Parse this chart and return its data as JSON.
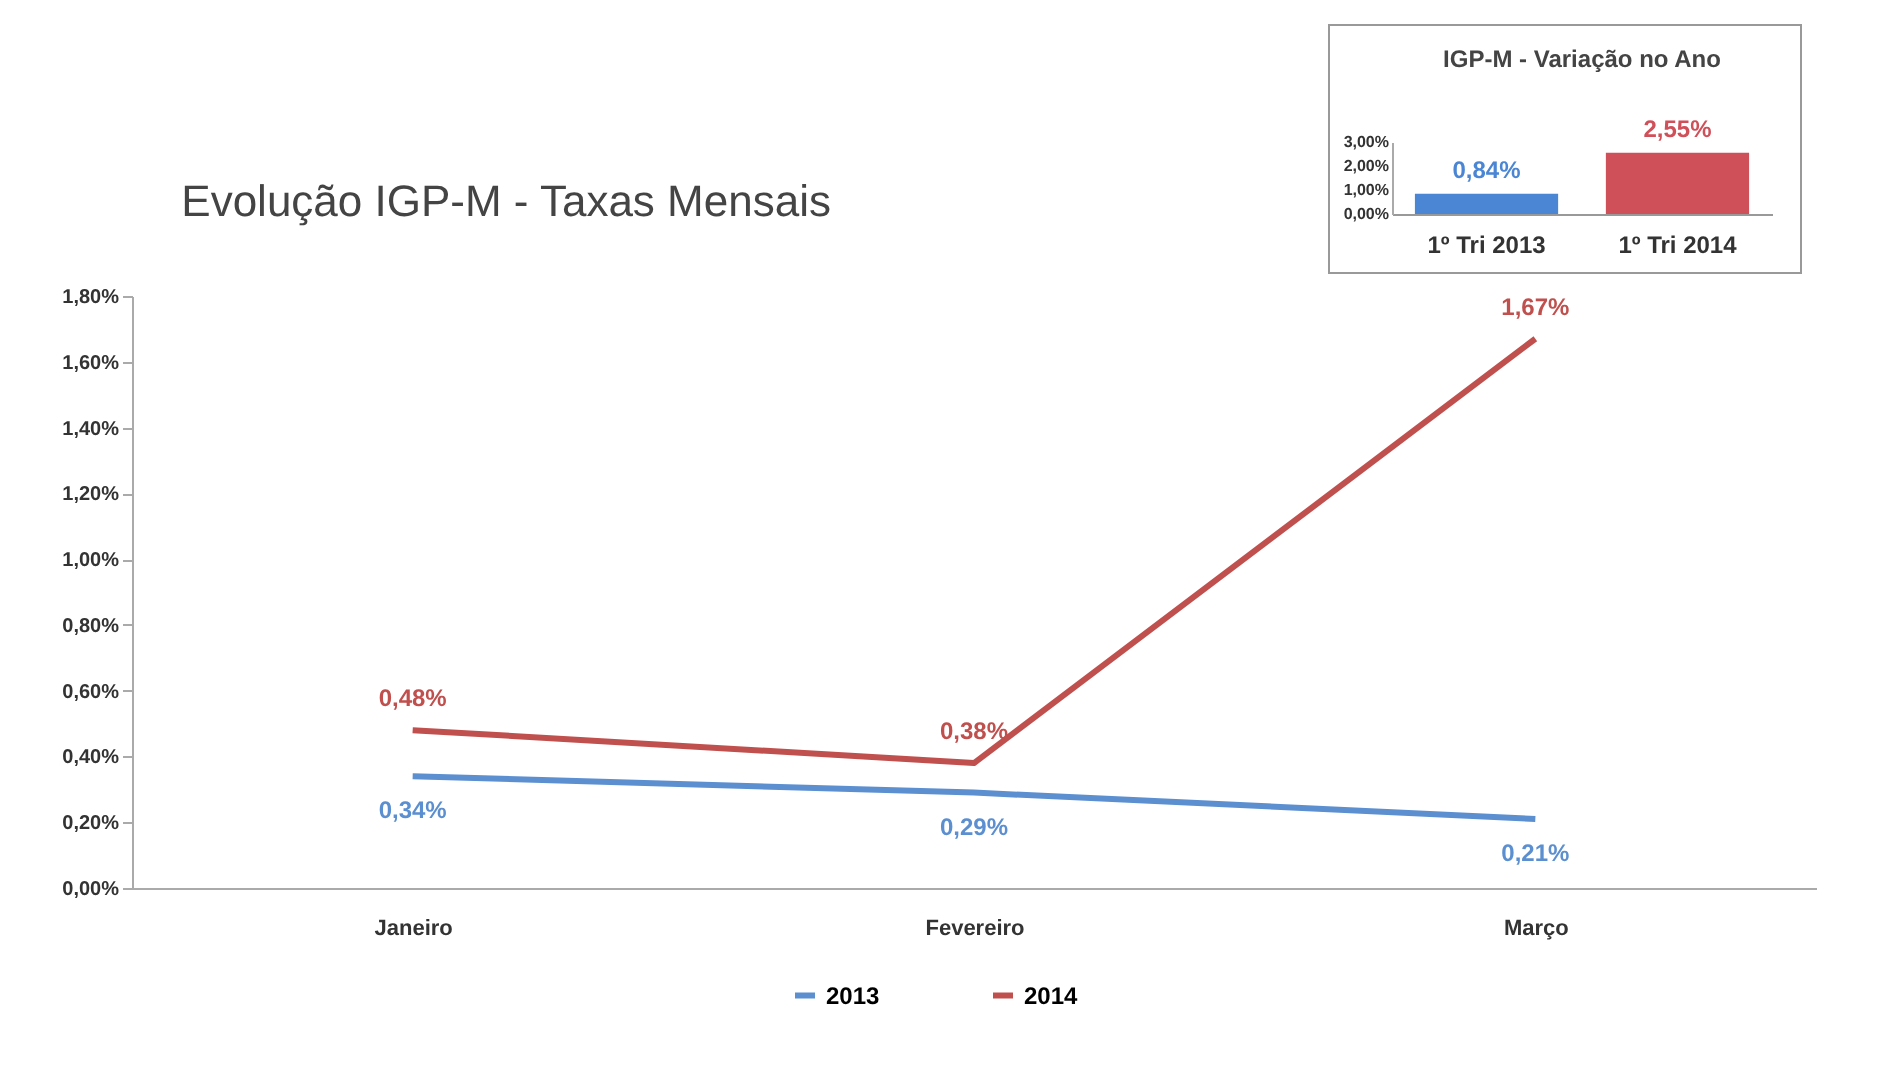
{
  "chart_data": [
    {
      "type": "line",
      "title": "Evolução IGP-M - Taxas Mensais",
      "categories": [
        "Janeiro",
        "Fevereiro",
        "Março"
      ],
      "series": [
        {
          "name": "2013",
          "color": "#5b8fd0",
          "values": [
            0.34,
            0.29,
            0.21
          ],
          "value_labels": [
            "0,34%",
            "0,29%",
            "0,21%"
          ]
        },
        {
          "name": "2014",
          "color": "#c0504d",
          "values": [
            0.48,
            0.38,
            1.67
          ],
          "value_labels": [
            "0,48%",
            "0,38%",
            "1,67%"
          ]
        }
      ],
      "ylim": [
        0,
        1.8
      ],
      "yticks": [
        {
          "value": 0,
          "label": "0,00%"
        },
        {
          "value": 0.2,
          "label": "0,20%"
        },
        {
          "value": 0.4,
          "label": "0,40%"
        },
        {
          "value": 0.6,
          "label": "0,60%"
        },
        {
          "value": 0.8,
          "label": "0,80%"
        },
        {
          "value": 1.0,
          "label": "1,00%"
        },
        {
          "value": 1.2,
          "label": "1,20%"
        },
        {
          "value": 1.4,
          "label": "1,40%"
        },
        {
          "value": 1.6,
          "label": "1,60%"
        },
        {
          "value": 1.8,
          "label": "1,80%"
        }
      ],
      "legend": "bottom",
      "marker": "none",
      "line_style": "solid"
    },
    {
      "type": "bar",
      "title": "IGP-M - Variação no Ano",
      "categories": [
        "1º Tri 2013",
        "1º Tri 2014"
      ],
      "values": [
        0.84,
        2.55
      ],
      "colors": [
        "#4a86d4",
        "#d0505a"
      ],
      "value_labels": [
        "0,84%",
        "2,55%"
      ],
      "ylim": [
        0,
        3
      ],
      "yticks": [
        {
          "value": 0,
          "label": "0,00%"
        },
        {
          "value": 1,
          "label": "1,00%"
        },
        {
          "value": 2,
          "label": "2,00%"
        },
        {
          "value": 3,
          "label": "3,00%"
        }
      ]
    }
  ]
}
